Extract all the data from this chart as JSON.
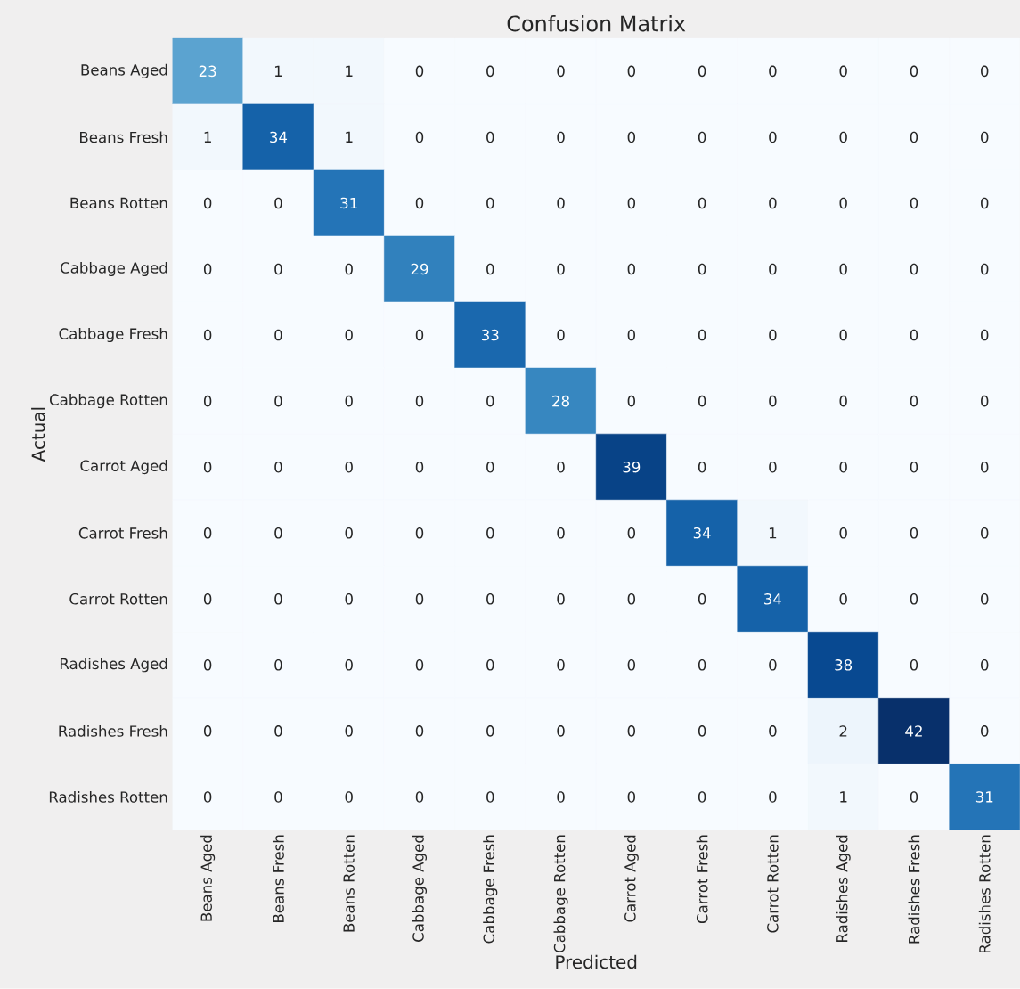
{
  "chart_data": {
    "type": "heatmap",
    "title": "Confusion Matrix",
    "xlabel": "Predicted",
    "ylabel": "Actual",
    "categories": [
      "Beans Aged",
      "Beans Fresh",
      "Beans Rotten",
      "Cabbage Aged",
      "Cabbage Fresh",
      "Cabbage Rotten",
      "Carrot Aged",
      "Carrot Fresh",
      "Carrot Rotten",
      "Radishes Aged",
      "Radishes Fresh",
      "Radishes Rotten"
    ],
    "y_categories": [
      "Beans Aged",
      "Beans Fresh",
      "Beans Rotten",
      "Cabbage Aged",
      "Cabbage Fresh",
      "Cabbage Rotten",
      "Carrot Aged",
      "Carrot Fresh",
      "Carrot Rotten",
      "Radishes Aged",
      "Radishes Fresh",
      "Radishes Rotten"
    ],
    "cells": [
      [
        23,
        1,
        1,
        0,
        0,
        0,
        0,
        0,
        0,
        0,
        0,
        0
      ],
      [
        1,
        34,
        1,
        0,
        0,
        0,
        0,
        0,
        0,
        0,
        0,
        0
      ],
      [
        0,
        0,
        31,
        0,
        0,
        0,
        0,
        0,
        0,
        0,
        0,
        0
      ],
      [
        0,
        0,
        0,
        29,
        0,
        0,
        0,
        0,
        0,
        0,
        0,
        0
      ],
      [
        0,
        0,
        0,
        0,
        33,
        0,
        0,
        0,
        0,
        0,
        0,
        0
      ],
      [
        0,
        0,
        0,
        0,
        0,
        28,
        0,
        0,
        0,
        0,
        0,
        0
      ],
      [
        0,
        0,
        0,
        0,
        0,
        0,
        39,
        0,
        0,
        0,
        0,
        0
      ],
      [
        0,
        0,
        0,
        0,
        0,
        0,
        0,
        34,
        1,
        0,
        0,
        0
      ],
      [
        0,
        0,
        0,
        0,
        0,
        0,
        0,
        0,
        34,
        0,
        0,
        0
      ],
      [
        0,
        0,
        0,
        0,
        0,
        0,
        0,
        0,
        0,
        38,
        0,
        0
      ],
      [
        0,
        0,
        0,
        0,
        0,
        0,
        0,
        0,
        0,
        2,
        42,
        0
      ],
      [
        0,
        0,
        0,
        0,
        0,
        0,
        0,
        0,
        0,
        1,
        0,
        31
      ]
    ],
    "data_labels": true,
    "grid": false
  }
}
